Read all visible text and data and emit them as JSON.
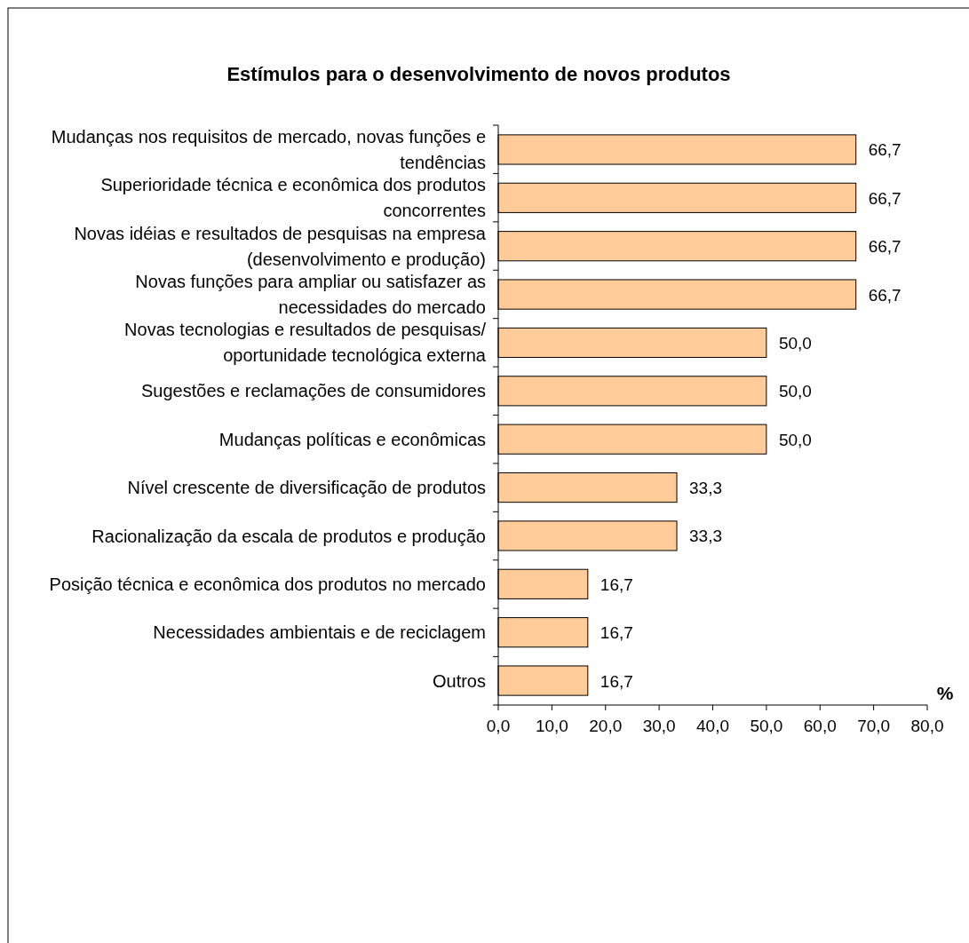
{
  "chart_data": {
    "type": "bar",
    "orientation": "horizontal",
    "title": "Estímulos para o desenvolvimento de novos produtos",
    "xlabel": "%",
    "categories": [
      "Mudanças nos requisitos de mercado, novas funções e tendências",
      "Superioridade técnica e econômica dos produtos concorrentes",
      "Novas idéias e resultados de pesquisas na empresa (desenvolvimento e produção)",
      "Novas funções para ampliar ou satisfazer as necessidades do mercado",
      "Novas tecnologias e resultados de pesquisas/ oportunidade tecnológica externa",
      "Sugestões e reclamações de consumidores",
      "Mudanças políticas e econômicas",
      "Nível crescente de diversificação de produtos",
      "Racionalização da escala de produtos e produção",
      "Posição técnica e econômica dos produtos no mercado",
      "Necessidades ambientais e de reciclagem",
      "Outros"
    ],
    "values": [
      66.7,
      66.7,
      66.7,
      66.7,
      50.0,
      50.0,
      50.0,
      33.3,
      33.3,
      16.7,
      16.7,
      16.7
    ],
    "value_labels": [
      "66,7",
      "66,7",
      "66,7",
      "66,7",
      "50,0",
      "50,0",
      "50,0",
      "33,3",
      "33,3",
      "16,7",
      "16,7",
      "16,7"
    ],
    "color": "#ffcc99",
    "xlim": [
      0,
      80
    ],
    "xticks": [
      {
        "value": 0,
        "label": "0,0"
      },
      {
        "value": 10,
        "label": "10,0"
      },
      {
        "value": 20,
        "label": "20,0"
      },
      {
        "value": 30,
        "label": "30,0"
      },
      {
        "value": 40,
        "label": "40,0"
      },
      {
        "value": 50,
        "label": "50,0"
      },
      {
        "value": 60,
        "label": "60,0"
      },
      {
        "value": 70,
        "label": "70,0"
      },
      {
        "value": 80,
        "label": "80,0"
      }
    ],
    "grid": false
  }
}
